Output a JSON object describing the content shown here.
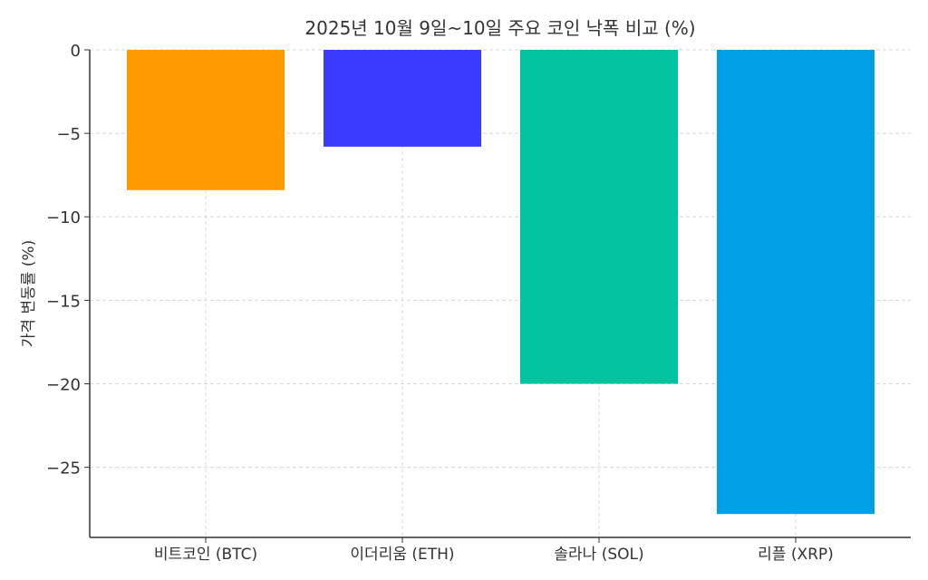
{
  "chart_data": {
    "type": "bar",
    "title": "2025년 10월 9일~10일 주요 코인 낙폭 비교 (%)",
    "xlabel": "",
    "ylabel": "가격 변동률 (%)",
    "categories": [
      "비트코인 (BTC)",
      "이더리움 (ETH)",
      "솔라나 (SOL)",
      "리플 (XRP)"
    ],
    "values": [
      -8.4,
      -5.8,
      -20.0,
      -27.8
    ],
    "colors": [
      "#FF9900",
      "#3B3BFF",
      "#00C49F",
      "#00A0E6"
    ],
    "ylim": [
      -29.2,
      0
    ],
    "yticks": [
      0,
      -5,
      -10,
      -15,
      -20,
      -25
    ],
    "ytick_labels": [
      "0",
      "−5",
      "−10",
      "−15",
      "−20",
      "−25"
    ],
    "grid": true,
    "legend": "none"
  }
}
